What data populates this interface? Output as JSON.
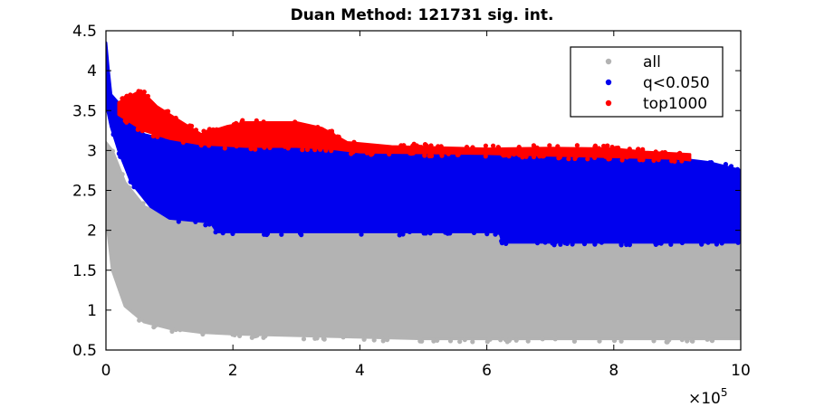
{
  "chart_data": {
    "type": "scatter",
    "title": "Duan Method: 121731 sig. int.",
    "xlabel": "",
    "ylabel": "",
    "xlim": [
      0,
      1000000
    ],
    "ylim": [
      0.5,
      4.5
    ],
    "x_ticks": [
      0,
      200000,
      400000,
      600000,
      800000,
      1000000
    ],
    "x_tick_labels": [
      "0",
      "2",
      "4",
      "6",
      "8",
      "10"
    ],
    "x_multiplier": {
      "base": "×10",
      "exponent": "5"
    },
    "y_ticks": [
      0.5,
      1,
      1.5,
      2,
      2.5,
      3,
      3.5,
      4,
      4.5
    ],
    "y_tick_labels": [
      "0.5",
      "1",
      "1.5",
      "2",
      "2.5",
      "3",
      "3.5",
      "4",
      "4.5"
    ],
    "grid": false,
    "legend_position": "top-right",
    "series": [
      {
        "name": "all",
        "color": "#b3b3b3",
        "lower_envelope": [
          [
            0,
            2.2
          ],
          [
            10000,
            1.5
          ],
          [
            30000,
            1.05
          ],
          [
            60000,
            0.85
          ],
          [
            100000,
            0.77
          ],
          [
            150000,
            0.72
          ],
          [
            200000,
            0.7
          ],
          [
            300000,
            0.68
          ],
          [
            400000,
            0.66
          ],
          [
            500000,
            0.64
          ],
          [
            600000,
            0.64
          ],
          [
            800000,
            0.64
          ],
          [
            1000000,
            0.64
          ]
        ],
        "upper_envelope": [
          [
            0,
            3.1
          ],
          [
            10000,
            3.0
          ],
          [
            30000,
            2.6
          ],
          [
            60000,
            2.3
          ],
          [
            100000,
            2.15
          ],
          [
            165000,
            2.1
          ],
          [
            175000,
            1.98
          ],
          [
            620000,
            1.98
          ],
          [
            625000,
            1.85
          ],
          [
            1000000,
            1.85
          ]
        ]
      },
      {
        "name": "q<0.050",
        "color": "#0000ee",
        "lower_envelope": [
          [
            0,
            3.6
          ],
          [
            8000,
            3.3
          ],
          [
            20000,
            3.0
          ],
          [
            40000,
            2.6
          ],
          [
            70000,
            2.3
          ],
          [
            100000,
            2.15
          ],
          [
            165000,
            2.1
          ],
          [
            175000,
            1.98
          ],
          [
            620000,
            1.98
          ],
          [
            625000,
            1.85
          ],
          [
            1000000,
            1.85
          ]
        ],
        "upper_envelope": [
          [
            0,
            4.35
          ],
          [
            4000,
            4.0
          ],
          [
            8000,
            3.7
          ],
          [
            30000,
            3.5
          ],
          [
            60000,
            3.2
          ],
          [
            100000,
            3.12
          ],
          [
            200000,
            3.05
          ],
          [
            400000,
            3.0
          ],
          [
            600000,
            2.97
          ],
          [
            800000,
            2.95
          ],
          [
            850000,
            2.92
          ],
          [
            900000,
            2.9
          ],
          [
            950000,
            2.85
          ],
          [
            1000000,
            2.75
          ]
        ]
      },
      {
        "name": "top1000",
        "color": "#ff0000",
        "lower_envelope": [
          [
            20000,
            3.45
          ],
          [
            60000,
            3.25
          ],
          [
            100000,
            3.15
          ],
          [
            150000,
            3.08
          ],
          [
            220000,
            3.05
          ],
          [
            300000,
            3.05
          ],
          [
            360000,
            3.02
          ],
          [
            400000,
            2.98
          ],
          [
            600000,
            2.96
          ],
          [
            800000,
            2.92
          ],
          [
            900000,
            2.9
          ],
          [
            920000,
            2.88
          ]
        ],
        "upper_envelope": [
          [
            20000,
            3.6
          ],
          [
            55000,
            3.75
          ],
          [
            80000,
            3.55
          ],
          [
            110000,
            3.4
          ],
          [
            150000,
            3.2
          ],
          [
            190000,
            3.3
          ],
          [
            220000,
            3.35
          ],
          [
            260000,
            3.35
          ],
          [
            300000,
            3.35
          ],
          [
            340000,
            3.28
          ],
          [
            380000,
            3.1
          ],
          [
            450000,
            3.05
          ],
          [
            600000,
            3.02
          ],
          [
            700000,
            3.03
          ],
          [
            800000,
            3.02
          ],
          [
            850000,
            2.98
          ],
          [
            920000,
            2.95
          ]
        ]
      }
    ]
  }
}
